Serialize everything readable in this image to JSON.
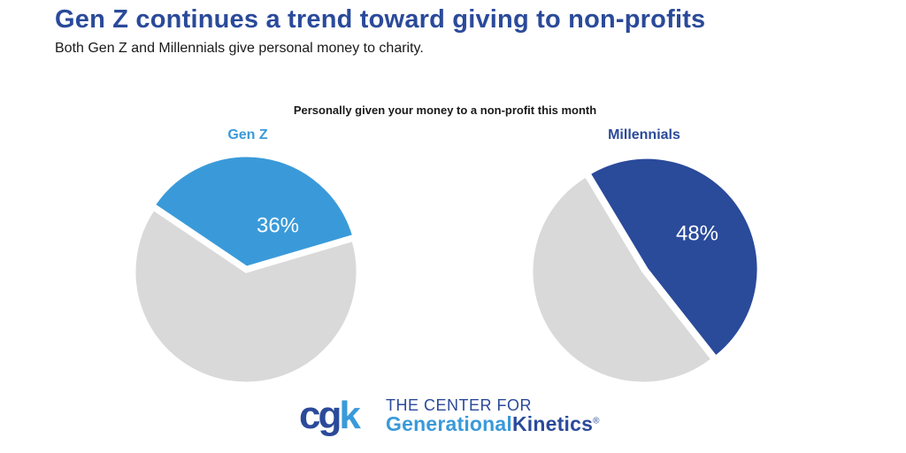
{
  "header": {
    "title": "Gen Z continues a trend toward giving to non-profits",
    "subtitle": "Both Gen Z and Millennials give personal money to charity."
  },
  "chart_data": {
    "type": "pie",
    "caption": "Personally given your money to a non-profit this month",
    "pies": [
      {
        "title": "Gen Z",
        "value_percent": 36,
        "label": "36%",
        "color": "#3a9ad9",
        "remainder_color": "#d9d9d9"
      },
      {
        "title": "Millennials",
        "value_percent": 48,
        "label": "48%",
        "color": "#2a4a9a",
        "remainder_color": "#d9d9d9"
      }
    ]
  },
  "logo": {
    "mark_c": "c",
    "mark_g": "g",
    "mark_k": "k",
    "line1": "THE CENTER FOR",
    "line2_a": "Generational",
    "line2_b": "Kinetics",
    "registered": "®"
  }
}
